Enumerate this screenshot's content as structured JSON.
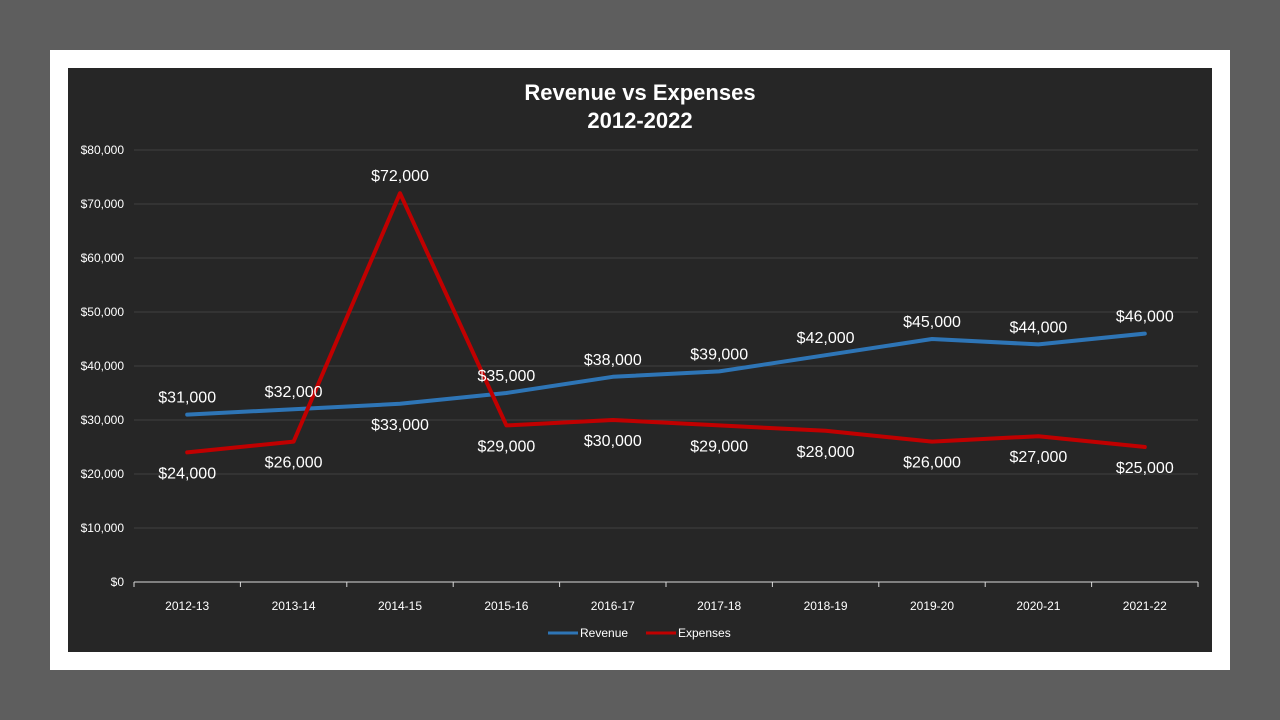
{
  "chart_data": {
    "type": "line",
    "title": "Revenue vs Expenses",
    "subtitle": "2012-2022",
    "xlabel": "",
    "ylabel": "",
    "categories": [
      "2012-13",
      "2013-14",
      "2014-15",
      "2015-16",
      "2016-17",
      "2017-18",
      "2018-19",
      "2019-20",
      "2020-21",
      "2021-22"
    ],
    "series": [
      {
        "name": "Revenue",
        "color": "#2e75b6",
        "values": [
          31000,
          32000,
          33000,
          35000,
          38000,
          39000,
          42000,
          45000,
          44000,
          46000
        ],
        "labels": [
          "$31,000",
          "$32,000",
          "$33,000",
          "$35,000",
          "$38,000",
          "$39,000",
          "$42,000",
          "$45,000",
          "$44,000",
          "$46,000"
        ]
      },
      {
        "name": "Expenses",
        "color": "#c00000",
        "values": [
          24000,
          26000,
          72000,
          29000,
          30000,
          29000,
          28000,
          26000,
          27000,
          25000
        ],
        "labels": [
          "$24,000",
          "$26,000",
          "$72,000",
          "$29,000",
          "$30,000",
          "$29,000",
          "$28,000",
          "$26,000",
          "$27,000",
          "$25,000"
        ]
      }
    ],
    "ylim": [
      0,
      80000
    ],
    "yticks": [
      0,
      10000,
      20000,
      30000,
      40000,
      50000,
      60000,
      70000,
      80000
    ],
    "ytick_labels": [
      "$0",
      "$10,000",
      "$20,000",
      "$30,000",
      "$40,000",
      "$50,000",
      "$60,000",
      "$70,000",
      "$80,000"
    ],
    "grid": true,
    "legend_position": "bottom"
  },
  "colors": {
    "page_background": "#5e5e5e",
    "frame_background": "#ffffff",
    "chart_background": "#262626",
    "gridline": "#404040",
    "axis": "#d9d9d9",
    "text": "#ffffff"
  }
}
